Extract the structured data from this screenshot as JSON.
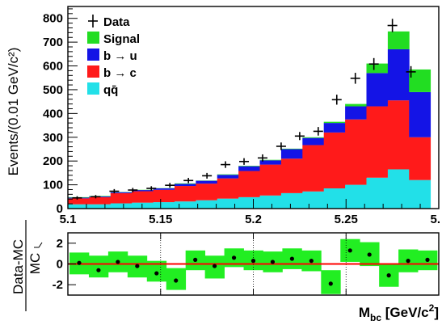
{
  "chart_data": [
    {
      "type": "bar",
      "stacked": true,
      "xlabel": "M_bc [GeV/c²]",
      "ylabel": "Events/(0.01 GeV/c²)",
      "xlim": [
        5.1,
        5.3
      ],
      "ylim": [
        0,
        850
      ],
      "x_tick_labels": [
        "5.1",
        "5.15",
        "5.2",
        "5.25",
        "5."
      ],
      "y_tick_labels": [
        "0",
        "100",
        "200",
        "300",
        "400",
        "500",
        "600",
        "700",
        "800"
      ],
      "legend_position": "top-left",
      "legend": [
        {
          "key": "data",
          "label": "Data"
        },
        {
          "key": "signal",
          "label": "Signal"
        },
        {
          "key": "bu",
          "label": "b",
          "arrow": "→",
          "quark": "u"
        },
        {
          "key": "bc",
          "label": "b",
          "arrow": "→",
          "quark": "c"
        },
        {
          "key": "qq",
          "label": "qq̄"
        }
      ],
      "bin_edges": [
        5.1,
        5.1115,
        5.123,
        5.1345,
        5.146,
        5.1575,
        5.169,
        5.1805,
        5.192,
        5.2035,
        5.215,
        5.2265,
        5.238,
        5.2495,
        5.261,
        5.2725,
        5.284,
        5.2955
      ],
      "series": [
        {
          "key": "qq",
          "color": "#22e0e8",
          "values": [
            18,
            18,
            22,
            25,
            27,
            30,
            35,
            42,
            48,
            55,
            65,
            72,
            85,
            100,
            130,
            165,
            120
          ]
        },
        {
          "key": "bc",
          "color": "#ff1a1a",
          "values": [
            25,
            30,
            43,
            48,
            52,
            65,
            70,
            85,
            110,
            130,
            145,
            195,
            235,
            275,
            300,
            290,
            180
          ]
        },
        {
          "key": "bu",
          "color": "#1414e6",
          "values": [
            3,
            3,
            4,
            5,
            6,
            9,
            12,
            15,
            20,
            18,
            40,
            30,
            40,
            55,
            140,
            215,
            190
          ]
        },
        {
          "key": "signal",
          "color": "#22dd22",
          "values": [
            2,
            2,
            1,
            1,
            1,
            2,
            1,
            2,
            2,
            2,
            2,
            3,
            5,
            10,
            40,
            75,
            95
          ]
        }
      ],
      "data": {
        "x": [
          5.105,
          5.115,
          5.125,
          5.135,
          5.145,
          5.155,
          5.165,
          5.175,
          5.185,
          5.195,
          5.205,
          5.215,
          5.225,
          5.235,
          5.245,
          5.255,
          5.265,
          5.275,
          5.285
        ],
        "y": [
          45,
          50,
          73,
          78,
          85,
          98,
          118,
          138,
          185,
          198,
          213,
          262,
          305,
          325,
          458,
          548,
          608,
          770,
          575
        ],
        "yerr": [
          7,
          7,
          9,
          9,
          9,
          10,
          11,
          12,
          14,
          14,
          15,
          16,
          17,
          18,
          21,
          23,
          25,
          28,
          24
        ]
      }
    },
    {
      "type": "scatter",
      "ylabel_top": "Data-MC",
      "ylabel_bottom": "MC",
      "ylim": [
        -3,
        3
      ],
      "y_tick_labels": [
        "-2",
        "0",
        "2"
      ],
      "reference_line": {
        "y": 0,
        "color": "#ff0000"
      },
      "band_color": "#22ee22",
      "x_grid": [
        5.15,
        5.2,
        5.25
      ],
      "bins": [
        {
          "x0": 5.1,
          "x1": 5.1115,
          "value": 0.1,
          "band": [
            -1.0,
            1.1
          ]
        },
        {
          "x0": 5.1115,
          "x1": 5.123,
          "value": -0.6,
          "band": [
            -1.3,
            0.8
          ]
        },
        {
          "x0": 5.123,
          "x1": 5.1345,
          "value": 0.2,
          "band": [
            -0.8,
            1.2
          ]
        },
        {
          "x0": 5.1345,
          "x1": 5.146,
          "value": -0.2,
          "band": [
            -1.3,
            0.8
          ]
        },
        {
          "x0": 5.146,
          "x1": 5.1575,
          "value": -0.9,
          "band": [
            -1.7,
            0.3
          ]
        },
        {
          "x0": 5.1575,
          "x1": 5.169,
          "value": -1.6,
          "band": [
            -2.5,
            -0.4
          ]
        },
        {
          "x0": 5.169,
          "x1": 5.1805,
          "value": 0.4,
          "band": [
            -0.6,
            1.3
          ]
        },
        {
          "x0": 5.1805,
          "x1": 5.192,
          "value": -0.2,
          "band": [
            -1.4,
            0.8
          ]
        },
        {
          "x0": 5.192,
          "x1": 5.2035,
          "value": 0.6,
          "band": [
            -0.3,
            1.5
          ]
        },
        {
          "x0": 5.2035,
          "x1": 5.215,
          "value": 0.3,
          "band": [
            -0.6,
            1.3
          ]
        },
        {
          "x0": 5.215,
          "x1": 5.2265,
          "value": 0.2,
          "band": [
            -0.8,
            1.2
          ]
        },
        {
          "x0": 5.2265,
          "x1": 5.238,
          "value": 0.5,
          "band": [
            -0.5,
            1.5
          ]
        },
        {
          "x0": 5.238,
          "x1": 5.2495,
          "value": 0.3,
          "band": [
            -0.7,
            1.3
          ]
        },
        {
          "x0": 5.2495,
          "x1": 5.261,
          "value": -1.9,
          "band": [
            -2.9,
            -0.6
          ]
        },
        {
          "x0": 5.261,
          "x1": 5.2725,
          "value": 1.3,
          "band": [
            0.2,
            2.4
          ]
        },
        {
          "x0": 5.2725,
          "x1": 5.284,
          "value": 0.9,
          "band": [
            -0.2,
            2.1
          ]
        },
        {
          "x0": 5.284,
          "x1": 5.2955,
          "value": -1.1,
          "band": [
            -2.2,
            0.0
          ]
        },
        {
          "x0": 5.2955,
          "x1": 5.307,
          "value": 0.3,
          "band": [
            -0.8,
            1.4
          ]
        },
        {
          "x0": 5.307,
          "x1": 5.318,
          "value": 0.4,
          "band": [
            -0.6,
            1.3
          ]
        }
      ]
    }
  ]
}
